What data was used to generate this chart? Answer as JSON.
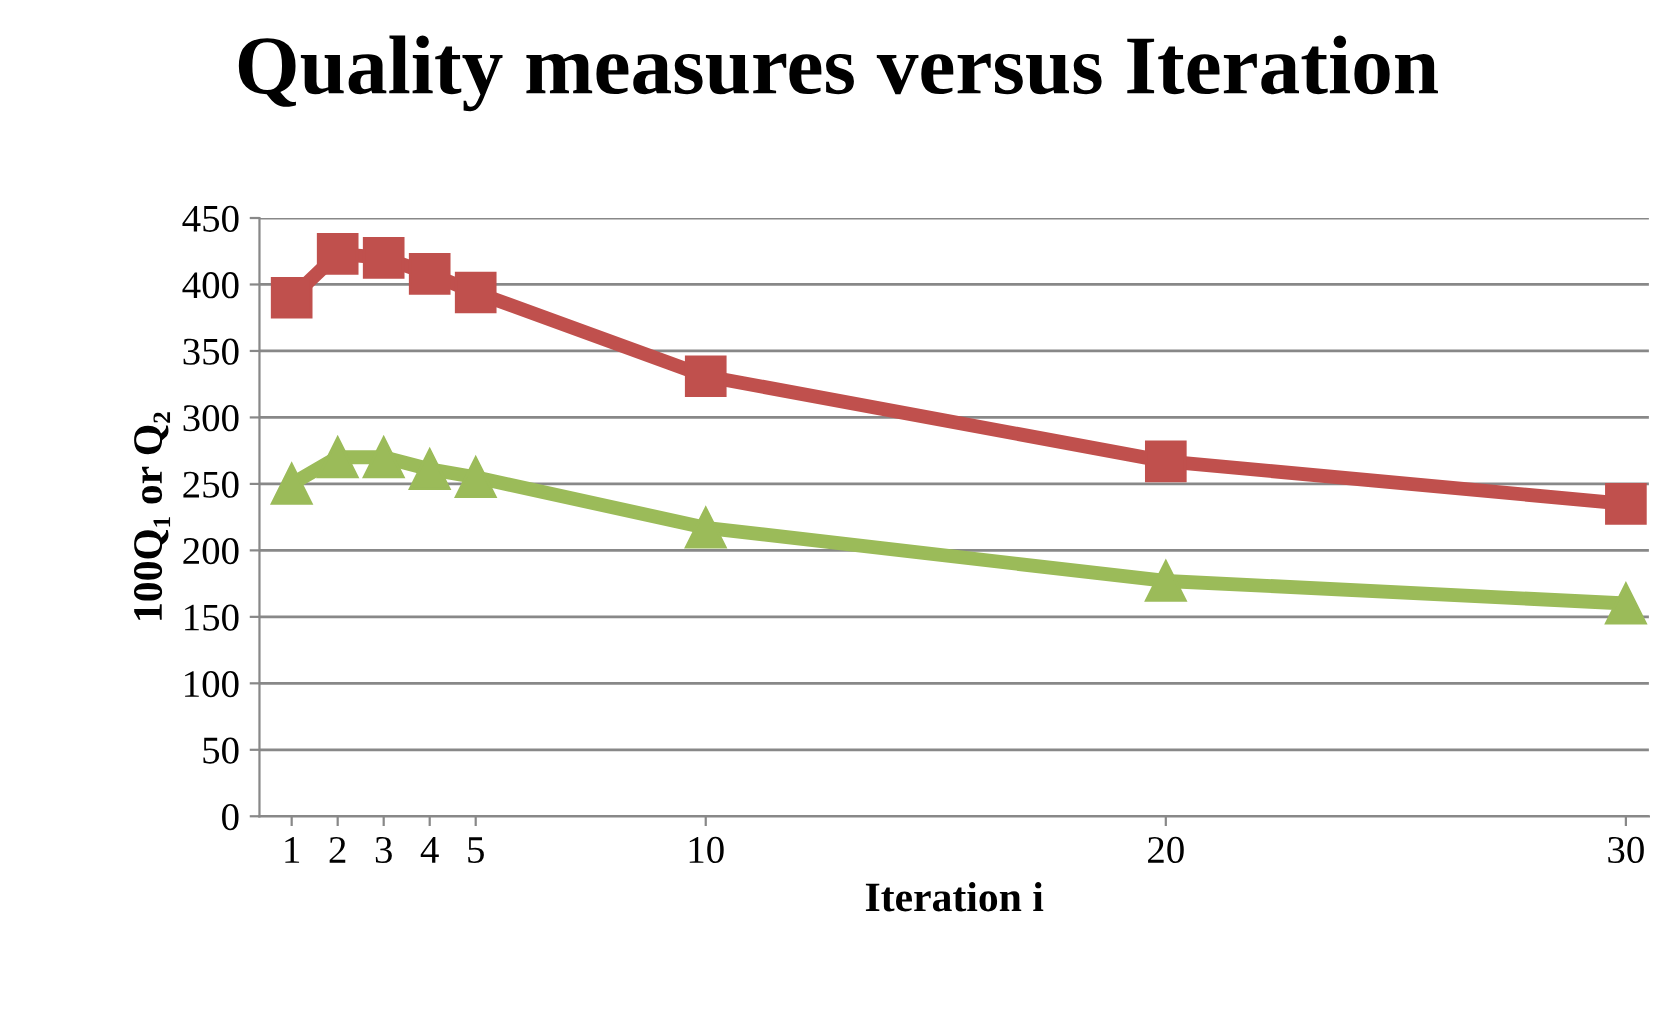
{
  "chart_data": {
    "type": "line",
    "title": "Quality measures versus Iteration",
    "xlabel": "Iteration i",
    "ylabel": "100Q₁ or Q₂",
    "xlim": [
      0.3,
      30.5
    ],
    "xticks": [
      1,
      2,
      3,
      4,
      5,
      10,
      20,
      30
    ],
    "ylim": [
      0,
      450
    ],
    "yticks": [
      0,
      50,
      100,
      150,
      200,
      250,
      300,
      350,
      400,
      450
    ],
    "grid": "y",
    "legend": false,
    "series": [
      {
        "color": "#c0504d",
        "marker": "square",
        "x": [
          1,
          2,
          3,
          4,
          5,
          10,
          20,
          30
        ],
        "values": [
          390,
          423,
          420,
          408,
          394,
          331,
          267,
          235
        ]
      },
      {
        "color": "#9bbb59",
        "marker": "triangle",
        "x": [
          1,
          2,
          3,
          4,
          5,
          10,
          20,
          30
        ],
        "values": [
          250,
          270,
          270,
          261,
          255,
          217,
          177,
          160
        ]
      }
    ]
  }
}
